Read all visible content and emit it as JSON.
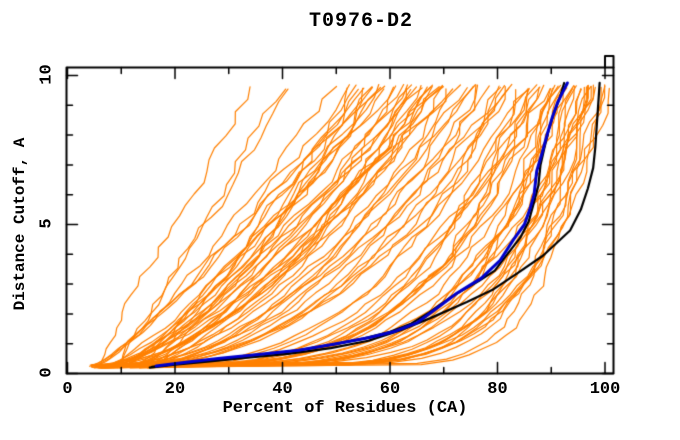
{
  "window": {
    "title": "T0976-D2"
  },
  "chart_data": {
    "type": "line",
    "title": "T0976-D2",
    "xlabel": "Percent of Residues (CA)",
    "ylabel": "Distance Cutoff, A",
    "xlim": [
      0,
      100
    ],
    "ylim": [
      0,
      10
    ],
    "grid": "off",
    "legend": "none",
    "frame": {
      "box": true,
      "ticks_inward": true,
      "corner_notch_top_right": true,
      "color": "#000000"
    },
    "background": "#ffffff",
    "x_major_ticks": [
      0,
      20,
      40,
      60,
      80,
      100
    ],
    "x_minor_ticks": [
      10,
      30,
      50,
      70,
      90
    ],
    "x_tick_labels": [
      "0",
      "20",
      "40",
      "60",
      "80",
      "100"
    ],
    "y_major_ticks": [
      0,
      5,
      10
    ],
    "y_minor_ticks": [
      1,
      2,
      3,
      4,
      6,
      7,
      8,
      9
    ],
    "y_tick_labels": [
      "0",
      "5",
      "10"
    ],
    "series": [
      {
        "name": "highlighted-model-blue",
        "color": "#0000cc",
        "line_width": 3,
        "points": [
          [
            16.5,
            0.25
          ],
          [
            22,
            0.38
          ],
          [
            28,
            0.5
          ],
          [
            35,
            0.63
          ],
          [
            43,
            0.78
          ],
          [
            50,
            1.0
          ],
          [
            56,
            1.2
          ],
          [
            61,
            1.42
          ],
          [
            65,
            1.7
          ],
          [
            68,
            2.1
          ],
          [
            72.5,
            2.7
          ],
          [
            77,
            3.2
          ],
          [
            80.5,
            3.8
          ],
          [
            83,
            4.5
          ],
          [
            85,
            5.0
          ],
          [
            86,
            5.5
          ],
          [
            86.8,
            6.0
          ],
          [
            87.3,
            6.8
          ],
          [
            88.3,
            7.4
          ],
          [
            89.2,
            8.0
          ],
          [
            90.2,
            8.6
          ],
          [
            91.2,
            9.1
          ],
          [
            92.3,
            9.5
          ],
          [
            93,
            9.75
          ]
        ]
      },
      {
        "name": "companion-model-black",
        "color": "#000000",
        "line_width": 2.2,
        "points": [
          [
            15.7,
            0.22
          ],
          [
            21,
            0.34
          ],
          [
            27,
            0.46
          ],
          [
            34,
            0.6
          ],
          [
            42,
            0.75
          ],
          [
            49,
            0.96
          ],
          [
            55,
            1.17
          ],
          [
            60,
            1.4
          ],
          [
            64,
            1.68
          ],
          [
            67.3,
            2.05
          ],
          [
            71.8,
            2.62
          ],
          [
            76.5,
            3.1
          ],
          [
            79.5,
            3.45
          ],
          [
            81.8,
            4.0
          ],
          [
            84.2,
            4.55
          ],
          [
            85.8,
            5.1
          ],
          [
            86.8,
            5.75
          ],
          [
            87.6,
            6.3
          ],
          [
            88,
            7.0
          ],
          [
            88.7,
            7.55
          ],
          [
            89.5,
            8.15
          ],
          [
            90.4,
            8.7
          ],
          [
            91.5,
            9.2
          ],
          [
            92.4,
            9.75
          ]
        ]
      },
      {
        "name": "best-model-black",
        "color": "#000000",
        "line_width": 2.2,
        "points": [
          [
            15.3,
            0.2
          ],
          [
            20,
            0.3
          ],
          [
            26,
            0.4
          ],
          [
            33,
            0.52
          ],
          [
            41,
            0.66
          ],
          [
            49,
            0.85
          ],
          [
            56,
            1.1
          ],
          [
            62,
            1.45
          ],
          [
            67.4,
            1.85
          ],
          [
            74.3,
            2.4
          ],
          [
            79,
            2.8
          ],
          [
            83.6,
            3.35
          ],
          [
            88.5,
            3.96
          ],
          [
            93.5,
            4.8
          ],
          [
            95.5,
            5.5
          ],
          [
            96.8,
            6.2
          ],
          [
            97.8,
            6.9
          ],
          [
            98.2,
            7.6
          ],
          [
            98.5,
            8.4
          ],
          [
            98.8,
            9.2
          ],
          [
            99,
            9.75
          ]
        ]
      }
    ],
    "ensemble": {
      "name": "server-model-curves",
      "color": "#ff8000",
      "line_width": 1.2,
      "count": 86,
      "seed": 11,
      "x_start_range": [
        4,
        15
      ],
      "y_range": [
        0.18,
        9.7
      ],
      "top_x_range": [
        24,
        100
      ]
    }
  }
}
